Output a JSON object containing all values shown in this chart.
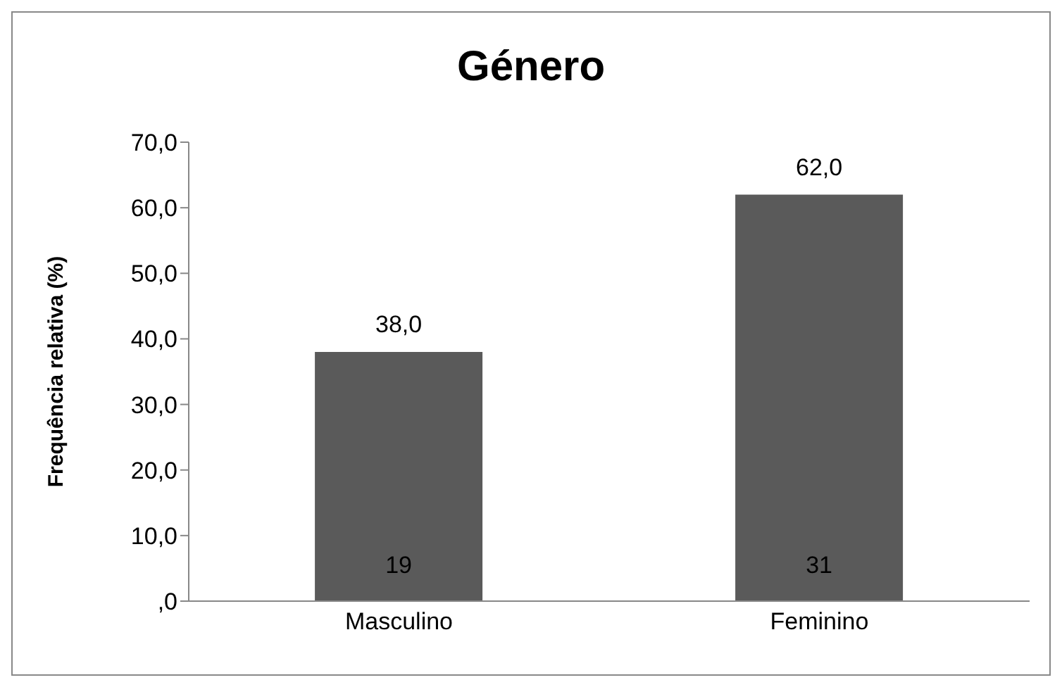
{
  "chart_data": {
    "type": "bar",
    "title": "Género",
    "ylabel": "Frequência relativa (%)",
    "categories": [
      "Masculino",
      "Feminino"
    ],
    "series": [
      {
        "color": "#5a5a5a",
        "values": [
          38.0,
          62.0
        ],
        "value_labels": [
          "38,0",
          "62,0"
        ]
      }
    ],
    "ylim": [
      0,
      70
    ],
    "yticks": [
      {
        "value": 0,
        "label": ",0"
      },
      {
        "value": 10,
        "label": "10,0"
      },
      {
        "value": 20,
        "label": "20,0"
      },
      {
        "value": 30,
        "label": "30,0"
      },
      {
        "value": 40,
        "label": "40,0"
      },
      {
        "value": 50,
        "label": "50,0"
      },
      {
        "value": 60,
        "label": "60,0"
      },
      {
        "value": 70,
        "label": "70,0"
      }
    ],
    "annotations": [
      "19",
      "31"
    ],
    "grid": false,
    "legend": false
  }
}
